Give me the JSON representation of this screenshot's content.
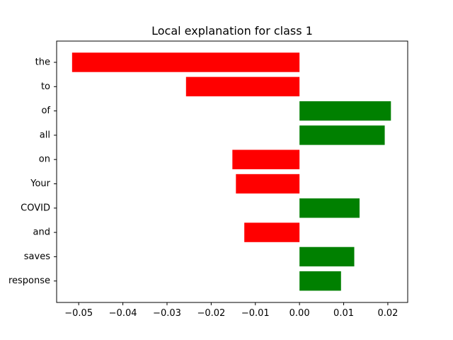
{
  "chart_data": {
    "type": "bar",
    "orientation": "horizontal",
    "title": "Local explanation for class 1",
    "xlabel": "",
    "ylabel": "",
    "categories": [
      "the",
      "to",
      "of",
      "all",
      "on",
      "Your",
      "COVID",
      "and",
      "saves",
      "response"
    ],
    "values": [
      -0.0515,
      -0.0257,
      0.0207,
      0.0193,
      -0.0152,
      -0.0144,
      0.0136,
      -0.0125,
      0.0124,
      0.0094
    ],
    "xlim": [
      -0.055,
      0.0245
    ],
    "xticks": [
      -0.05,
      -0.04,
      -0.03,
      -0.02,
      -0.01,
      0.0,
      0.01,
      0.02
    ],
    "xtick_labels": [
      "−0.05",
      "−0.04",
      "−0.03",
      "−0.02",
      "−0.01",
      "0.00",
      "0.01",
      "0.02"
    ],
    "colors": {
      "positive": "#008000",
      "negative": "#ff0000"
    },
    "grid": false,
    "legend": "none"
  }
}
